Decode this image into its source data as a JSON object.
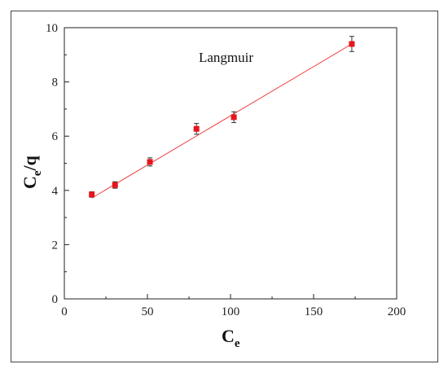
{
  "chart_data": {
    "type": "scatter",
    "annotation": "Langmuir",
    "xlabel": {
      "main": "C",
      "sub": "e"
    },
    "ylabel": {
      "main": "C",
      "sub": "e",
      "rest": "/q"
    },
    "xlim": [
      0,
      200
    ],
    "ylim": [
      0,
      10
    ],
    "xticks": [
      "0",
      "50",
      "100",
      "150",
      "200"
    ],
    "yticks": [
      "0",
      "2",
      "4",
      "6",
      "8",
      "10"
    ],
    "grid": false,
    "legend": "none",
    "marker_color": "#e8141c",
    "line_color": "#f04040",
    "points": [
      {
        "x": 16.5,
        "y": 3.85,
        "err": 0.1
      },
      {
        "x": 30.5,
        "y": 4.2,
        "err": 0.12
      },
      {
        "x": 51.5,
        "y": 5.05,
        "err": 0.15
      },
      {
        "x": 79.5,
        "y": 6.27,
        "err": 0.2
      },
      {
        "x": 102.0,
        "y": 6.7,
        "err": 0.2
      },
      {
        "x": 173.0,
        "y": 9.4,
        "err": 0.28
      }
    ],
    "fit": {
      "x0": 16.5,
      "y0": 3.72,
      "x1": 173.0,
      "y1": 9.4
    }
  }
}
